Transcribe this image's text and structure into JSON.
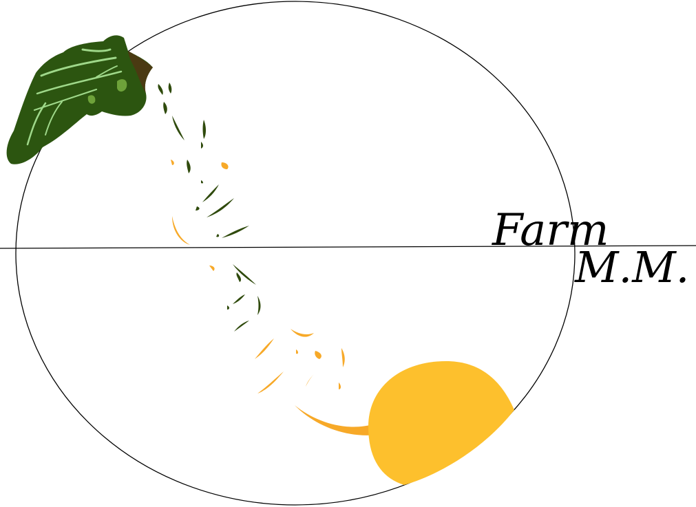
{
  "logo": {
    "line1": "Farm",
    "line2": "M.M."
  },
  "colors": {
    "outline": "#000000",
    "leaf_dark": "#2c5510",
    "leaf_mid": "#3e6e1a",
    "leaf_vein": "#9fd88a",
    "leaf_shadow": "#4a3a12",
    "crumb_green": "#2f4a0c",
    "crumb_orange": "#f7a928",
    "sun_yellow": "#fdc02d",
    "sun_tail": "#f7a928"
  },
  "icons": {
    "leaf": "leaf-icon",
    "sun": "sun-icon"
  }
}
